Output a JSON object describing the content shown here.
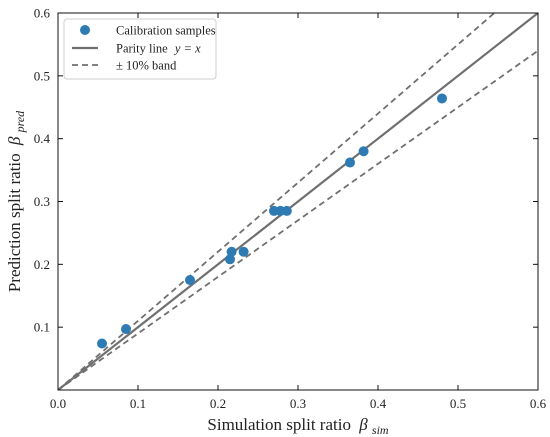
{
  "chart_data": {
    "type": "scatter",
    "title": "",
    "xlabel": "Simulation split ratio",
    "xlabel_symbol": "β",
    "xlabel_subscript": "sim",
    "ylabel": "Prediction split ratio",
    "ylabel_symbol": "β",
    "ylabel_subscript": "pred",
    "xlim": [
      0.0,
      0.6
    ],
    "ylim": [
      0.0,
      0.6
    ],
    "xticks": [
      0.0,
      0.1,
      0.2,
      0.3,
      0.4,
      0.5,
      0.6
    ],
    "yticks": [
      0.1,
      0.2,
      0.3,
      0.4,
      0.5,
      0.6
    ],
    "xtick_labels": [
      "0.0",
      "0.1",
      "0.2",
      "0.3",
      "0.4",
      "0.5",
      "0.6"
    ],
    "ytick_labels": [
      "0.1",
      "0.2",
      "0.3",
      "0.4",
      "0.5",
      "0.6"
    ],
    "grid": false,
    "legend_position": "top-left",
    "series": [
      {
        "name": "Calibration samples",
        "kind": "scatter",
        "color": "#2e7bb4",
        "x": [
          0.055,
          0.085,
          0.165,
          0.215,
          0.217,
          0.232,
          0.27,
          0.278,
          0.286,
          0.365,
          0.382,
          0.48
        ],
        "y": [
          0.074,
          0.097,
          0.175,
          0.208,
          0.22,
          0.22,
          0.285,
          0.285,
          0.285,
          0.362,
          0.38,
          0.464
        ]
      },
      {
        "name": "Parity line",
        "name_math": "y = x",
        "kind": "line",
        "color": "#707070",
        "slope": 1.0
      },
      {
        "name": "± 10% band",
        "kind": "dashed",
        "color": "#707070",
        "slopes": [
          1.1,
          0.9
        ]
      }
    ]
  }
}
